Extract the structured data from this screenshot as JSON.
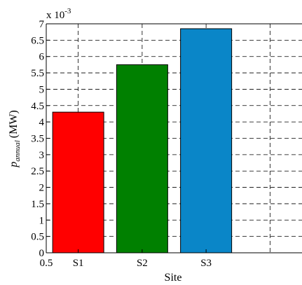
{
  "chart_data": {
    "type": "bar",
    "categories": [
      "S1",
      "S2",
      "S3"
    ],
    "values": [
      0.0043,
      0.00575,
      0.00685
    ],
    "bar_colors": [
      "#ff0000",
      "#008000",
      "#0a86c8"
    ],
    "xlabel": "Site",
    "ylabel_main": "p",
    "ylabel_sub": "annual",
    "ylabel_unit": "(MW)",
    "ylim": [
      0,
      0.007
    ],
    "xlim": [
      0.5,
      4.5
    ],
    "y_scale_base": "x 10",
    "y_scale_exp": "-3",
    "yticks": [
      0,
      0.5,
      1,
      1.5,
      2,
      2.5,
      3,
      3.5,
      4,
      4.5,
      5,
      5.5,
      6,
      6.5,
      7
    ],
    "ytick_labels": [
      "0",
      "0.5",
      "1",
      "1.5",
      "2",
      "2.5",
      "3",
      "3.5",
      "4",
      "4.5",
      "5",
      "5.5",
      "6",
      "6.5",
      "7"
    ],
    "xticks": [
      0.5,
      1,
      2,
      3
    ],
    "xtick_labels": [
      "0.5",
      "S1",
      "S2",
      "S3"
    ],
    "grid": true,
    "grid_style": "dashed",
    "legend": "none"
  }
}
